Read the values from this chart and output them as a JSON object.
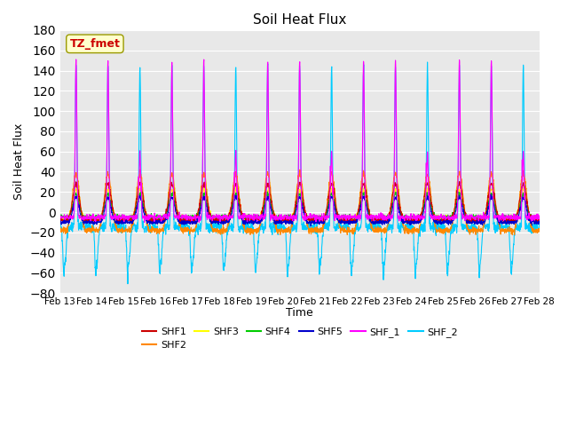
{
  "title": "Soil Heat Flux",
  "ylabel": "Soil Heat Flux",
  "xlabel": "Time",
  "ylim": [
    -80,
    180
  ],
  "yticks": [
    -80,
    -60,
    -40,
    -20,
    0,
    20,
    40,
    60,
    80,
    100,
    120,
    140,
    160,
    180
  ],
  "xtick_labels": [
    "Feb 13",
    "Feb 14",
    "Feb 15",
    "Feb 16",
    "Feb 17",
    "Feb 18",
    "Feb 19",
    "Feb 20",
    "Feb 21",
    "Feb 22",
    "Feb 23",
    "Feb 24",
    "Feb 25",
    "Feb 26",
    "Feb 27",
    "Feb 28"
  ],
  "series_colors": {
    "SHF1": "#cc0000",
    "SHF2": "#ff8800",
    "SHF3": "#ffff00",
    "SHF4": "#00cc00",
    "SHF5": "#0000cc",
    "SHF_1": "#ff00ff",
    "SHF_2": "#00ccff"
  },
  "annotation_text": "TZ_fmet",
  "annotation_color": "#cc0000",
  "annotation_bg": "#ffffcc",
  "legend_ncol_row1": 6,
  "legend_ncol_row2": 1
}
